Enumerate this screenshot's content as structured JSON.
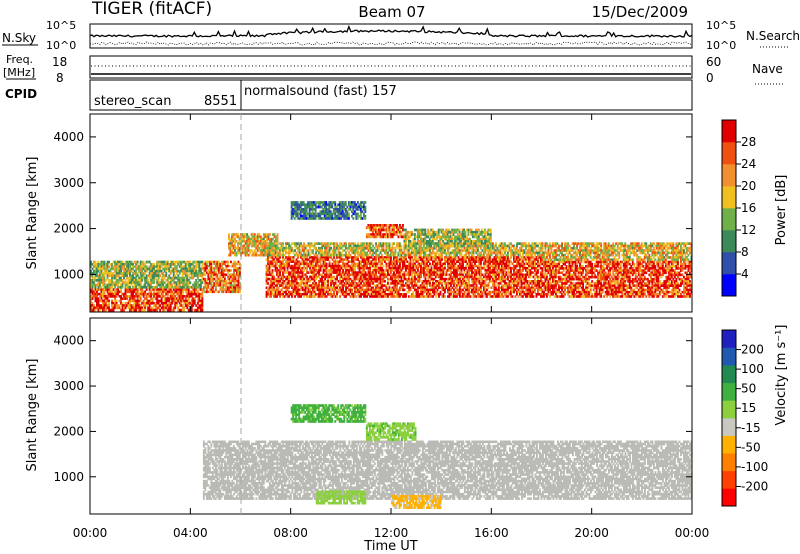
{
  "header": {
    "station": "TIGER (fitACF)",
    "beam": "Beam 07",
    "date": "15/Dec/2009"
  },
  "panels": {
    "nsky_label": "N.Sky",
    "nsky_ticks_left": [
      "10^5",
      "10^0"
    ],
    "nsky_ticks_right": [
      "10^5",
      "10^0"
    ],
    "nsearch_label": "N.Search",
    "freq_label_line1": "Freq.",
    "freq_label_line2": "[MHz]",
    "freq_ticks": [
      "18",
      "8"
    ],
    "nave_label": "Nave",
    "nave_ticks": [
      "60",
      "0"
    ],
    "cpid_label": "CPID",
    "cpid_segments": [
      {
        "name": "stereo_scan",
        "id": "8551",
        "start_hour": 0,
        "end_hour": 6
      },
      {
        "name": "normalsound (fast)",
        "id": "157",
        "start_hour": 6,
        "end_hour": 24
      }
    ]
  },
  "colors": {
    "power_scale": [
      "#0000ff",
      "#2f4fa8",
      "#3c8a5a",
      "#6fb04a",
      "#f0c020",
      "#f29030",
      "#f05010",
      "#e00000"
    ],
    "velocity_scale": [
      "#ff0000",
      "#ff4000",
      "#ff8000",
      "#ffb000",
      "#c8c8c0",
      "#8cd040",
      "#40b040",
      "#208a50",
      "#205ab0",
      "#2020c0"
    ],
    "ground_scatter": "#bbbbb5"
  },
  "chart_data": [
    {
      "type": "heatmap",
      "title": "",
      "xlabel": "",
      "ylabel": "Slant Range [km]",
      "x_ticks": [
        "00:00",
        "04:00",
        "08:00",
        "12:00",
        "16:00",
        "20:00",
        "00:00"
      ],
      "y_ticks": [
        "1000",
        "2000",
        "3000",
        "4000"
      ],
      "xlim": [
        0,
        24
      ],
      "ylim": [
        180,
        4500
      ],
      "colorbar_label": "Power [dB]",
      "colorbar_ticks": [
        "4",
        "8",
        "12",
        "16",
        "20",
        "24",
        "28"
      ],
      "colorbar_range": [
        0,
        30
      ],
      "scatter_bands": [
        {
          "x": [
            0,
            4.5
          ],
          "y": [
            200,
            700
          ],
          "value": 26
        },
        {
          "x": [
            0,
            4.5
          ],
          "y": [
            700,
            1300
          ],
          "value": 14
        },
        {
          "x": [
            4.5,
            6
          ],
          "y": [
            600,
            1300
          ],
          "value": 22
        },
        {
          "x": [
            5.5,
            7.5
          ],
          "y": [
            1400,
            1900
          ],
          "value": 18
        },
        {
          "x": [
            7,
            18
          ],
          "y": [
            500,
            1400
          ],
          "value": 26
        },
        {
          "x": [
            7,
            18
          ],
          "y": [
            1400,
            1700
          ],
          "value": 16
        },
        {
          "x": [
            18,
            24
          ],
          "y": [
            500,
            1300
          ],
          "value": 26
        },
        {
          "x": [
            18,
            24
          ],
          "y": [
            1300,
            1700
          ],
          "value": 18
        },
        {
          "x": [
            8,
            11
          ],
          "y": [
            2200,
            2600
          ],
          "value": 8
        },
        {
          "x": [
            11,
            12.5
          ],
          "y": [
            1800,
            2100
          ],
          "value": 24
        },
        {
          "x": [
            12.5,
            16
          ],
          "y": [
            1600,
            2000
          ],
          "value": 14
        }
      ]
    },
    {
      "type": "heatmap",
      "title": "",
      "xlabel": "Time UT",
      "ylabel": "Slant Range [km]",
      "x_ticks": [
        "00:00",
        "04:00",
        "08:00",
        "12:00",
        "16:00",
        "20:00",
        "00:00"
      ],
      "y_ticks": [
        "1000",
        "2000",
        "3000",
        "4000"
      ],
      "xlim": [
        0,
        24
      ],
      "ylim": [
        180,
        4500
      ],
      "colorbar_label": "Velocity [m s⁻¹]",
      "colorbar_ticks": [
        "200",
        "100",
        "50",
        "15",
        "-15",
        "-50",
        "-100",
        "-200"
      ],
      "colorbar_range": [
        -250,
        250
      ],
      "scatter_bands": [
        {
          "x": [
            4.5,
            24
          ],
          "y": [
            500,
            1800
          ],
          "value": "ground"
        },
        {
          "x": [
            8,
            11
          ],
          "y": [
            2200,
            2600
          ],
          "value": 60
        },
        {
          "x": [
            11,
            13
          ],
          "y": [
            1800,
            2200
          ],
          "value": 40
        },
        {
          "x": [
            12,
            14
          ],
          "y": [
            300,
            600
          ],
          "value": -60
        },
        {
          "x": [
            9,
            11
          ],
          "y": [
            400,
            700
          ],
          "value": 30
        }
      ]
    }
  ]
}
